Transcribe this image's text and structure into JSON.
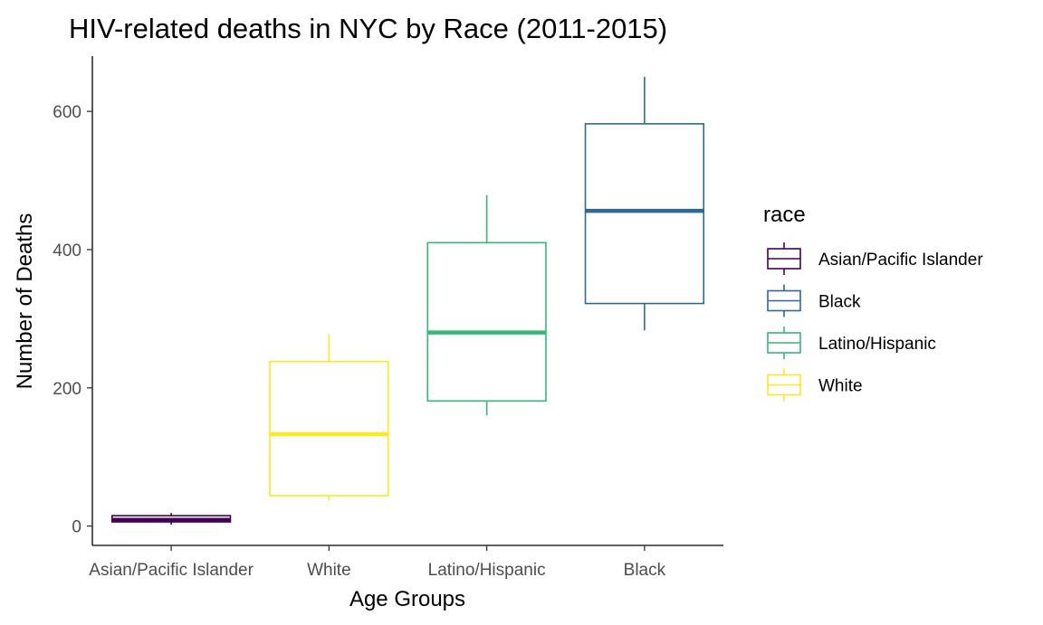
{
  "chart_data": {
    "type": "boxplot",
    "title": "HIV-related deaths in NYC by Race (2011-2015)",
    "xlabel": "Age Groups",
    "ylabel": "Number of Deaths",
    "ylim": [
      -28,
      680
    ],
    "yticks": [
      0,
      200,
      400,
      600
    ],
    "categories": [
      "Asian/Pacific Islander",
      "White",
      "Latino/Hispanic",
      "Black"
    ],
    "boxes": [
      {
        "category": "Asian/Pacific Islander",
        "min": 2,
        "q1": 6,
        "median": 9,
        "q3": 15,
        "max": 19,
        "color": "#440154"
      },
      {
        "category": "White",
        "min": 37,
        "q1": 44,
        "median": 133,
        "q3": 238,
        "max": 277,
        "color": "#FDE725"
      },
      {
        "category": "Latino/Hispanic",
        "min": 160,
        "q1": 181,
        "median": 280,
        "q3": 410,
        "max": 479,
        "color": "#35B779"
      },
      {
        "category": "Black",
        "min": 283,
        "q1": 322,
        "median": 456,
        "q3": 582,
        "max": 650,
        "color": "#31688E"
      }
    ],
    "legend": {
      "title": "race",
      "position": "right",
      "entries": [
        {
          "label": "Asian/Pacific Islander",
          "color": "#440154"
        },
        {
          "label": "Black",
          "color": "#31688E"
        },
        {
          "label": "Latino/Hispanic",
          "color": "#35B779"
        },
        {
          "label": "White",
          "color": "#FDE725"
        }
      ]
    },
    "grid": false
  }
}
